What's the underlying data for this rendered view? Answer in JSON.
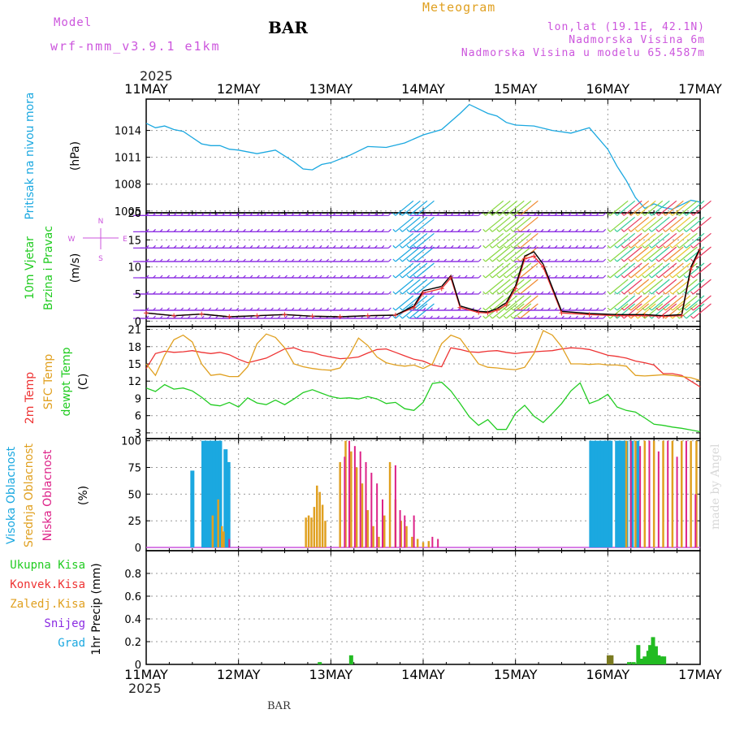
{
  "header": {
    "model_label": "Model",
    "model_name": "wrf-nmm_v3.9.1 e1km",
    "station": "BAR",
    "app_title": "Meteogram",
    "coords": "lon,lat (19.1E, 42.1N)",
    "elevation": "Nadmorska Visina 6m",
    "model_elevation": "Nadmorska Visina u modelu 65.4587m",
    "year": "2025",
    "footer_station": "BAR",
    "watermark": "made by Angel"
  },
  "colors": {
    "pressure": "#1ba8e0",
    "temp2m": "#ee3333",
    "sfc": "#e0a020",
    "dew": "#22cc22",
    "high_cloud": "#1ba8e0",
    "mid_cloud": "#e0a020",
    "low_cloud": "#dd2288",
    "precip": "#22bb22",
    "purple": "#cc55dd",
    "wind_arrow": "#8a2be2"
  },
  "chart_data": [
    {
      "id": "pressure",
      "type": "line",
      "ylabel": [
        "Pritisak na nivou mora",
        "(hPa)"
      ],
      "ylim": [
        1004.8,
        1017.5
      ],
      "yticks": [
        1005,
        1008,
        1011,
        1014
      ],
      "x_days": [
        0,
        0.1,
        0.2,
        0.3,
        0.4,
        0.5,
        0.6,
        0.7,
        0.8,
        0.9,
        1.0,
        1.2,
        1.4,
        1.6,
        1.7,
        1.8,
        1.9,
        2.0,
        2.2,
        2.4,
        2.6,
        2.8,
        3.0,
        3.2,
        3.4,
        3.5,
        3.6,
        3.7,
        3.8,
        3.9,
        4.0,
        4.2,
        4.4,
        4.6,
        4.8,
        5.0,
        5.1,
        5.2,
        5.3,
        5.4,
        5.5,
        5.6,
        5.7,
        5.8,
        5.9,
        6.0
      ],
      "series": [
        {
          "color_key": "pressure",
          "values": [
            1014.8,
            1014.3,
            1014.5,
            1014.1,
            1013.9,
            1013.2,
            1012.5,
            1012.3,
            1012.3,
            1011.9,
            1011.8,
            1011.4,
            1011.8,
            1010.5,
            1009.7,
            1009.6,
            1010.2,
            1010.4,
            1011.2,
            1012.2,
            1012.1,
            1012.6,
            1013.5,
            1014.1,
            1015.9,
            1016.9,
            1016.4,
            1015.9,
            1015.6,
            1014.9,
            1014.6,
            1014.5,
            1014.0,
            1013.7,
            1014.3,
            1011.9,
            1010.0,
            1008.4,
            1006.5,
            1005.3,
            1005.8,
            1005.4,
            1005.2,
            1005.7,
            1006.2,
            1006.0
          ]
        }
      ]
    },
    {
      "id": "wind",
      "type": "line",
      "ylabel": [
        "10m Vjetar",
        "Brzina i Pravac",
        "(m/s)"
      ],
      "compass_labels": [
        "W",
        "N",
        "E",
        "S"
      ],
      "ylim": [
        -1,
        20
      ],
      "yticks": [
        0,
        5,
        10,
        15,
        20
      ],
      "arrow_rows": [
        0.5,
        2,
        5,
        8,
        11,
        13.5,
        16.5,
        19.5
      ],
      "x_days": [
        0,
        0.3,
        0.6,
        0.9,
        1.2,
        1.5,
        1.8,
        2.1,
        2.4,
        2.7,
        2.9,
        3.0,
        3.2,
        3.3,
        3.4,
        3.6,
        3.7,
        3.8,
        3.9,
        4.0,
        4.1,
        4.2,
        4.3,
        4.5,
        4.8,
        5.1,
        5.4,
        5.6,
        5.8,
        5.9,
        6.0
      ],
      "series": [
        {
          "name": "speed",
          "color_key": "temp2m",
          "values": [
            1.5,
            1.0,
            1.3,
            0.8,
            1.0,
            1.2,
            0.9,
            0.8,
            1.0,
            1.1,
            2.5,
            5.2,
            6.0,
            8.0,
            2.5,
            1.6,
            1.5,
            2.0,
            3.0,
            6.0,
            11.5,
            12.0,
            10.0,
            1.5,
            1.2,
            1.0,
            1.0,
            0.9,
            1.0,
            9.5,
            13.2
          ]
        },
        {
          "name": "gust",
          "color_key": "black",
          "values": [
            1.5,
            1.0,
            1.3,
            0.8,
            1.0,
            1.2,
            0.9,
            0.8,
            1.0,
            1.1,
            2.8,
            5.6,
            6.4,
            8.4,
            2.8,
            1.8,
            1.7,
            2.3,
            3.4,
            6.5,
            12.0,
            12.8,
            10.5,
            1.8,
            1.4,
            1.2,
            1.2,
            1.0,
            1.2,
            10.0,
            13.5
          ]
        }
      ]
    },
    {
      "id": "temperature",
      "type": "line",
      "ylabel": [
        "2m Temp",
        "SFC Temp",
        "dewpt Temp",
        "(C)"
      ],
      "ylim": [
        2,
        21.5
      ],
      "yticks": [
        3,
        6,
        9,
        12,
        15,
        18,
        21
      ],
      "x_days": [
        0,
        0.1,
        0.2,
        0.3,
        0.4,
        0.5,
        0.6,
        0.7,
        0.8,
        0.9,
        1.0,
        1.1,
        1.2,
        1.3,
        1.4,
        1.5,
        1.6,
        1.7,
        1.8,
        1.9,
        2.0,
        2.1,
        2.2,
        2.3,
        2.4,
        2.5,
        2.6,
        2.7,
        2.8,
        2.9,
        3.0,
        3.1,
        3.2,
        3.3,
        3.4,
        3.5,
        3.6,
        3.7,
        3.8,
        3.9,
        4.0,
        4.1,
        4.2,
        4.3,
        4.4,
        4.5,
        4.6,
        4.7,
        4.8,
        4.9,
        5.0,
        5.1,
        5.2,
        5.3,
        5.4,
        5.5,
        5.6,
        5.7,
        5.8,
        5.9,
        6.0
      ],
      "series": [
        {
          "name": "2m Temp",
          "color_key": "temp2m",
          "values": [
            14.2,
            16.8,
            17.2,
            17.0,
            17.1,
            17.3,
            17.0,
            16.8,
            17.0,
            16.6,
            15.8,
            15.2,
            15.6,
            16.0,
            16.8,
            17.6,
            17.8,
            17.2,
            17.0,
            16.5,
            16.2,
            15.9,
            16.0,
            16.2,
            16.9,
            17.5,
            17.6,
            17.0,
            16.4,
            15.8,
            15.5,
            14.8,
            14.5,
            17.8,
            17.5,
            17.1,
            17.0,
            17.2,
            17.3,
            17.0,
            16.8,
            17.0,
            17.1,
            17.2,
            17.3,
            17.6,
            17.8,
            17.7,
            17.5,
            17.0,
            16.5,
            16.3,
            16.0,
            15.5,
            15.2,
            14.8,
            13.3,
            13.3,
            13.0,
            12.0,
            11.0
          ]
        },
        {
          "name": "SFC Temp",
          "color_key": "sfc",
          "values": [
            15.0,
            13.0,
            16.5,
            19.2,
            20.0,
            18.8,
            15.0,
            13.0,
            13.2,
            12.8,
            12.8,
            14.5,
            18.5,
            20.2,
            19.6,
            17.8,
            15.0,
            14.5,
            14.2,
            14.0,
            13.9,
            14.3,
            16.5,
            19.5,
            18.2,
            16.2,
            15.2,
            14.8,
            14.6,
            14.8,
            14.2,
            15.0,
            18.5,
            20.0,
            19.4,
            17.2,
            15.0,
            14.4,
            14.3,
            14.1,
            14.0,
            14.4,
            16.8,
            20.8,
            20.0,
            18.0,
            15.0,
            15.0,
            14.9,
            15.0,
            14.8,
            14.8,
            14.6,
            13.0,
            12.9,
            13.0,
            13.1,
            13.0,
            12.8,
            12.6,
            12.1
          ]
        },
        {
          "name": "dewpt Temp",
          "color_key": "dew",
          "values": [
            10.8,
            10.2,
            11.4,
            10.6,
            10.8,
            10.3,
            9.2,
            7.9,
            7.7,
            8.3,
            7.5,
            9.1,
            8.2,
            7.9,
            8.7,
            7.9,
            8.9,
            10.0,
            10.5,
            9.9,
            9.3,
            9.0,
            9.1,
            8.9,
            9.3,
            8.9,
            8.1,
            8.3,
            7.2,
            6.9,
            8.3,
            11.6,
            11.8,
            10.3,
            8.1,
            5.8,
            4.3,
            5.3,
            3.6,
            3.6,
            6.4,
            7.8,
            5.9,
            4.8,
            6.4,
            8.1,
            10.3,
            11.7,
            8.1,
            8.7,
            9.7,
            7.5,
            6.9,
            6.6,
            5.6,
            4.5,
            4.3,
            4.0,
            3.8,
            3.5,
            3.2
          ]
        }
      ]
    },
    {
      "id": "clouds",
      "type": "bar",
      "ylabel": [
        "Visoka Oblacnost",
        "Srednja Oblacnost",
        "Niska Oblacnost",
        "(%)"
      ],
      "ylim": [
        -3,
        102
      ],
      "yticks": [
        0,
        25,
        50,
        75,
        100
      ],
      "series": [
        {
          "name": "Visoka Oblacnost",
          "color_key": "high_cloud",
          "x_days": [
            0.5,
            0.62,
            0.65,
            0.68,
            0.71,
            0.74,
            0.77,
            0.8,
            0.86,
            0.89,
            4.82,
            4.85,
            4.88,
            4.91,
            4.94,
            4.97,
            5.0,
            5.03,
            5.1,
            5.13,
            5.16,
            5.2,
            5.26,
            5.32
          ],
          "values": [
            72,
            100,
            100,
            100,
            100,
            100,
            100,
            100,
            92,
            80,
            100,
            100,
            100,
            100,
            100,
            100,
            100,
            100,
            100,
            100,
            100,
            100,
            100,
            100
          ]
        },
        {
          "name": "Srednja Oblacnost",
          "color_key": "mid_cloud",
          "x_days": [
            0.72,
            0.78,
            0.82,
            0.84,
            1.73,
            1.76,
            1.79,
            1.82,
            1.85,
            1.88,
            1.91,
            1.94,
            2.1,
            2.16,
            2.22,
            2.28,
            2.34,
            2.4,
            2.46,
            2.52,
            2.58,
            2.64,
            2.7,
            2.76,
            2.82,
            2.88,
            2.94,
            3.0,
            3.06,
            5.2,
            5.3,
            5.4,
            5.5,
            5.6,
            5.7,
            5.8,
            5.9,
            5.96
          ],
          "values": [
            30,
            45,
            20,
            15,
            28,
            30,
            28,
            38,
            58,
            52,
            40,
            25,
            80,
            100,
            90,
            75,
            60,
            35,
            20,
            10,
            30,
            80,
            45,
            25,
            20,
            10,
            8,
            5,
            6,
            100,
            100,
            100,
            100,
            100,
            100,
            100,
            100,
            100
          ]
        },
        {
          "name": "Niska Oblacnost",
          "color_key": "low_cloud",
          "x_days": [
            0.9,
            2.15,
            2.2,
            2.26,
            2.32,
            2.38,
            2.44,
            2.5,
            2.56,
            2.7,
            2.75,
            2.8,
            2.9,
            3.1,
            3.16,
            5.25,
            5.35,
            5.45,
            5.55,
            5.65,
            5.75,
            5.85,
            5.95
          ],
          "values": [
            8,
            85,
            100,
            95,
            90,
            80,
            70,
            60,
            45,
            77,
            35,
            30,
            30,
            10,
            8,
            100,
            95,
            100,
            90,
            100,
            85,
            100,
            50
          ]
        }
      ]
    },
    {
      "id": "precip",
      "type": "bar",
      "ylabel": [
        "1hr Precip (mm)"
      ],
      "legend": [
        "Ukupna Kisa",
        "Konvek.Kisa",
        "Zaledj.Kisa",
        "Snijeg",
        "Grad"
      ],
      "legend_color_keys": [
        "dew",
        "temp2m",
        "sfc",
        "wind_arrow",
        "high_cloud"
      ],
      "ylim": [
        0,
        1.0
      ],
      "yticks": [
        0,
        0.2,
        0.4,
        0.6,
        0.8
      ],
      "x_days": [
        1.88,
        2.22,
        5.01,
        5.04,
        5.23,
        5.28,
        5.33,
        5.36,
        5.4,
        5.44,
        5.46,
        5.49,
        5.52,
        5.55,
        5.58,
        5.61
      ],
      "values": [
        0.02,
        0.08,
        0.08,
        0.08,
        0.02,
        0.02,
        0.17,
        0.05,
        0.07,
        0.12,
        0.17,
        0.24,
        0.16,
        0.08,
        0.07,
        0.07
      ],
      "x_labels": [
        "11MAY",
        "12MAY",
        "13MAY",
        "14MAY",
        "15MAY",
        "16MAY",
        "17MAY"
      ]
    }
  ]
}
